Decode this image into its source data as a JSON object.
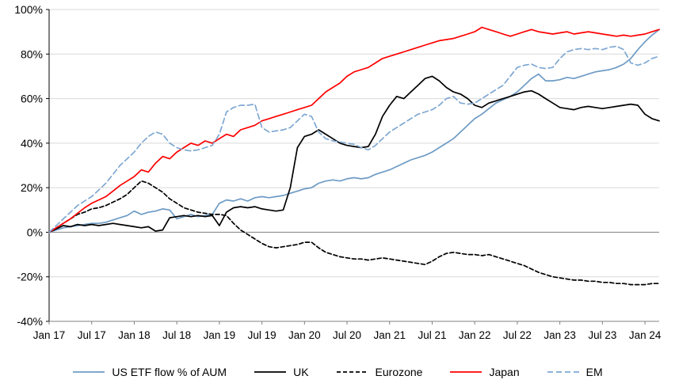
{
  "chart_data": {
    "type": "line",
    "title": "",
    "xlabel": "",
    "ylabel": "",
    "ylim": [
      -40,
      100
    ],
    "grid": "horizontal",
    "legend_position": "bottom",
    "y_ticks": [
      100,
      80,
      60,
      40,
      20,
      0,
      -20,
      -40
    ],
    "y_tick_labels": [
      "100%",
      "80%",
      "60%",
      "40%",
      "20%",
      "0%",
      "-20%",
      "-40%"
    ],
    "x_start": "Jan 17",
    "x_frequency": "monthly",
    "x_tick_indices": [
      0,
      6,
      12,
      18,
      24,
      30,
      36,
      42,
      48,
      54,
      60,
      66,
      72,
      78,
      84
    ],
    "x_tick_labels": [
      "Jan 17",
      "Jul 17",
      "Jan 18",
      "Jul 18",
      "Jan 19",
      "Jul 19",
      "Jan 20",
      "Jul 20",
      "Jan 21",
      "Jul 21",
      "Jan 22",
      "Jul 22",
      "Jan 23",
      "Jul 23",
      "Jan 24"
    ],
    "axis_color": "#000000",
    "gridline_color": "#d9d9d9",
    "zero_line_color": "#808080",
    "series": [
      {
        "name": "US ETF flow % of AUM",
        "color": "#6e9bc5",
        "dash": null,
        "values": [
          0,
          1,
          2,
          2.5,
          3,
          3.5,
          4,
          4,
          4.5,
          5.5,
          6.5,
          7.5,
          9.5,
          8,
          9,
          9.5,
          10.5,
          10,
          6,
          7,
          8,
          7,
          7.5,
          8,
          13,
          14.5,
          14,
          15,
          14,
          15.5,
          16,
          15.5,
          16,
          16.5,
          17.5,
          18.5,
          19.5,
          20,
          22,
          23,
          23.5,
          23,
          24,
          24.5,
          24,
          24.5,
          26,
          27,
          28,
          29.5,
          31,
          32.5,
          33.5,
          34.5,
          36,
          38,
          40,
          42,
          45,
          48,
          51,
          53,
          55.5,
          58,
          59.5,
          61,
          63,
          66,
          69,
          71,
          68,
          68,
          68.5,
          69.5,
          69,
          70,
          71,
          72,
          72.5,
          73,
          74,
          75.5,
          78,
          82,
          85.5,
          88.5,
          91
        ]
      },
      {
        "name": "UK",
        "color": "#000000",
        "dash": null,
        "values": [
          0,
          1.5,
          3,
          2.5,
          3.5,
          3,
          3.5,
          3,
          3.5,
          4,
          3.5,
          3,
          2.5,
          2,
          2.5,
          0.5,
          1,
          6.5,
          7,
          7.5,
          7,
          7.5,
          7,
          7.5,
          3,
          9,
          11,
          11.5,
          11,
          11.5,
          10.5,
          10,
          9.5,
          10,
          20,
          38,
          43,
          44,
          46,
          44,
          42,
          40,
          39,
          38.5,
          38,
          38.5,
          44,
          52,
          57,
          61,
          60,
          63,
          66,
          69,
          70,
          68,
          65,
          63,
          62,
          60,
          57,
          56,
          58,
          59,
          60,
          61,
          62,
          63,
          63.5,
          62,
          60,
          58,
          56,
          55.5,
          55,
          56,
          56.5,
          56,
          55.5,
          56,
          56.5,
          57,
          57.5,
          57,
          53,
          51,
          50
        ]
      },
      {
        "name": "Eurozone",
        "color": "#000000",
        "dash": "5 3",
        "values": [
          0,
          2,
          4,
          6,
          8,
          9,
          10.5,
          11,
          12,
          13.5,
          15,
          17,
          20,
          23,
          22,
          20,
          18,
          15,
          13,
          11,
          10,
          9,
          8.5,
          8,
          8,
          7.5,
          4,
          1,
          -1,
          -3,
          -5,
          -6.5,
          -7,
          -6.5,
          -6,
          -5.5,
          -4.5,
          -4.5,
          -7,
          -9,
          -10,
          -11,
          -11.5,
          -12,
          -12,
          -12.5,
          -12,
          -11.5,
          -12,
          -12.5,
          -13,
          -13.5,
          -14,
          -14.5,
          -13,
          -11,
          -9.5,
          -9,
          -9.5,
          -10,
          -10,
          -10.5,
          -10,
          -11,
          -12,
          -13,
          -14,
          -15,
          -16.5,
          -18,
          -19,
          -20,
          -20.5,
          -21,
          -21.5,
          -21.5,
          -22,
          -22,
          -22.5,
          -22.5,
          -23,
          -23,
          -23.5,
          -23.5,
          -23.5,
          -23,
          -23
        ]
      },
      {
        "name": "Japan",
        "color": "#ff0000",
        "dash": null,
        "values": [
          0,
          2,
          4,
          6,
          8.5,
          11,
          13,
          14.5,
          16,
          18.5,
          21,
          23,
          25,
          28,
          27,
          31,
          34,
          33,
          36,
          38,
          40,
          39,
          41,
          40,
          42,
          44,
          43,
          46,
          47,
          48,
          50,
          51,
          52,
          53,
          54,
          55,
          56,
          57,
          60,
          63,
          65,
          67,
          70,
          72,
          73,
          74,
          76,
          78,
          79,
          80,
          81,
          82,
          83,
          84,
          85,
          86,
          86.5,
          87,
          88,
          89,
          90,
          92,
          91,
          90,
          89,
          88,
          89,
          90,
          91,
          90,
          89.5,
          89,
          89.5,
          90,
          89,
          89.5,
          90,
          89.5,
          89,
          88.5,
          88,
          88.5,
          88,
          88.5,
          89,
          90,
          91
        ]
      },
      {
        "name": "EM",
        "color": "#7fa8d2",
        "dash": "7 4",
        "values": [
          0,
          3,
          6,
          9,
          12,
          14,
          16,
          19,
          22,
          26,
          30,
          33,
          36,
          40,
          43,
          45,
          44,
          40,
          38,
          37,
          36.5,
          37,
          38,
          39,
          44,
          54,
          56,
          57,
          57,
          57.5,
          47,
          45,
          45.5,
          46,
          47,
          50,
          53,
          52,
          45,
          42,
          41,
          40.5,
          40,
          39.5,
          38,
          37,
          39,
          42,
          45,
          47,
          49,
          51,
          53,
          54,
          55,
          57,
          60,
          61,
          58,
          57.5,
          58,
          60,
          62,
          64,
          66,
          70,
          74,
          75,
          75.5,
          74,
          73.5,
          74,
          78,
          81,
          82,
          82.5,
          82,
          82.5,
          82,
          83,
          83.5,
          82,
          76,
          75,
          76,
          78,
          79
        ]
      }
    ]
  },
  "legend": {
    "items": [
      {
        "label": "US ETF flow % of AUM"
      },
      {
        "label": "UK"
      },
      {
        "label": "Eurozone"
      },
      {
        "label": "Japan"
      },
      {
        "label": "EM"
      }
    ]
  }
}
